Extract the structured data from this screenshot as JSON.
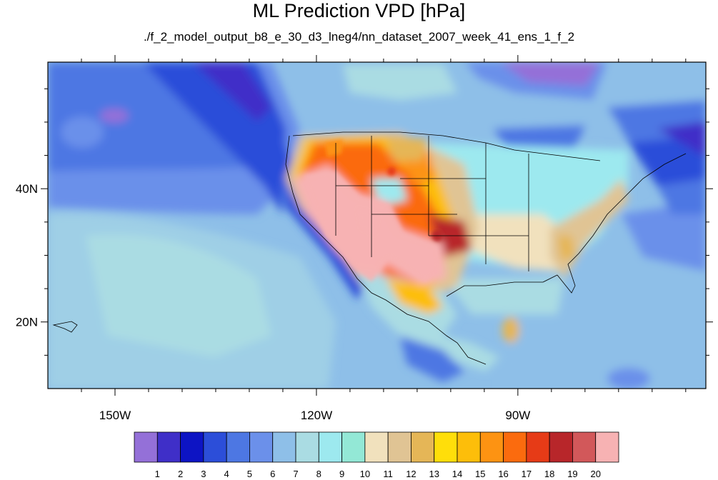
{
  "figure": {
    "title": "ML Prediction VPD [hPa]",
    "subtitle": "./f_2_model_output_b8_e_30_d3_lneg4/nn_dataset_2007_week_41_ens_1_f_2"
  },
  "map": {
    "lon_range": [
      -160,
      -62
    ],
    "lat_range": [
      10,
      59
    ],
    "lat_labels": [
      {
        "text": "40N",
        "value": 40
      },
      {
        "text": "20N",
        "value": 20
      }
    ],
    "lon_labels": [
      {
        "text": "150W",
        "value": -150
      },
      {
        "text": "120W",
        "value": -120
      },
      {
        "text": "90W",
        "value": -90
      }
    ]
  },
  "colorbar": {
    "labels": [
      "1",
      "2",
      "3",
      "4",
      "5",
      "6",
      "7",
      "8",
      "9",
      "10",
      "11",
      "12",
      "13",
      "14",
      "15",
      "16",
      "17",
      "18",
      "19",
      "20"
    ],
    "colors": [
      "#9470d8",
      "#3f2fc8",
      "#0d14c4",
      "#2c4ed9",
      "#4d77e3",
      "#6b90ea",
      "#8ebfe8",
      "#aadce3",
      "#9de9ef",
      "#93e8d6",
      "#f1e1bd",
      "#e0c494",
      "#e5b657",
      "#ffde0a",
      "#fdbe0a",
      "#fd9312",
      "#fb6b0e",
      "#e63b17",
      "#b8262a",
      "#d2585a",
      "#f7b2b3"
    ]
  }
}
